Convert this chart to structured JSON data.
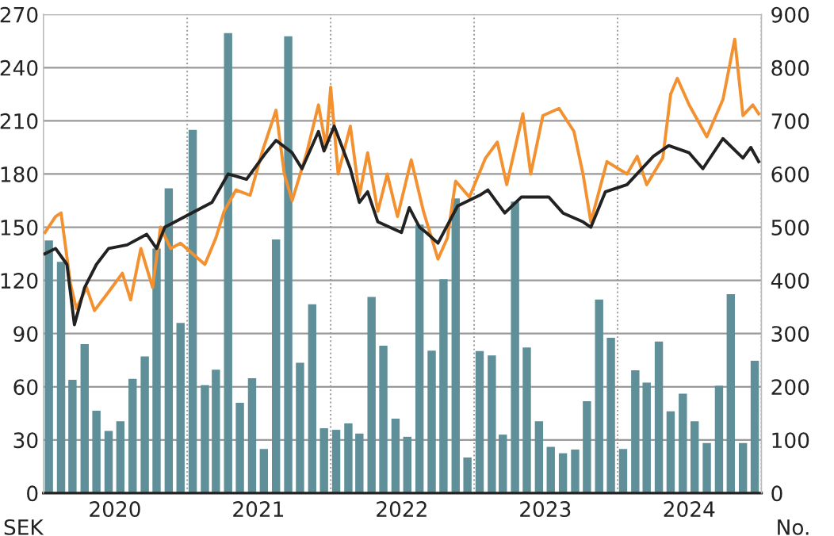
{
  "chart_data": {
    "type": "bar",
    "ylabel": "SEK",
    "y2label": "No.",
    "xlim": [
      "2020-01-01",
      "2025-01-01"
    ],
    "xticks": [
      {
        "value": "2020-07-01",
        "label": "2020"
      },
      {
        "value": "2021-07-01",
        "label": "2021"
      },
      {
        "value": "2022-07-01",
        "label": "2022"
      },
      {
        "value": "2023-07-01",
        "label": "2023"
      },
      {
        "value": "2024-07-01",
        "label": "2024"
      }
    ],
    "ylim": [
      0,
      270
    ],
    "yticks": [
      0,
      30,
      60,
      90,
      120,
      150,
      180,
      210,
      240,
      270
    ],
    "y2lim": [
      0,
      900
    ],
    "y2ticks": [
      0,
      100,
      200,
      300,
      400,
      500,
      600,
      700,
      800,
      900
    ],
    "grid": "y",
    "ref_lines": [
      {
        "axis": "x",
        "value": "2021-01-01",
        "color": "#999999",
        "line_style": "dotted"
      },
      {
        "axis": "x",
        "value": "2022-01-01",
        "color": "#999999",
        "line_style": "dotted"
      },
      {
        "axis": "x",
        "value": "2023-01-01",
        "color": "#999999",
        "line_style": "dotted"
      },
      {
        "axis": "x",
        "value": "2024-01-01",
        "color": "#999999",
        "line_style": "dotted"
      },
      {
        "axis": "x",
        "value": "2025-01-01",
        "color": "#999999",
        "line_style": "dotted"
      }
    ],
    "series": [
      {
        "axis": "y2",
        "color": "#5f8f99",
        "x": [
          "2020-01-15",
          "2020-02-15",
          "2020-03-15",
          "2020-04-15",
          "2020-05-15",
          "2020-06-15",
          "2020-07-15",
          "2020-08-15",
          "2020-09-15",
          "2020-10-15",
          "2020-11-15",
          "2020-12-15",
          "2021-01-15",
          "2021-02-15",
          "2021-03-15",
          "2021-04-15",
          "2021-05-15",
          "2021-06-15",
          "2021-07-15",
          "2021-08-15",
          "2021-09-15",
          "2021-10-15",
          "2021-11-15",
          "2021-12-15",
          "2022-01-15",
          "2022-02-15",
          "2022-03-15",
          "2022-04-15",
          "2022-05-15",
          "2022-06-15",
          "2022-07-15",
          "2022-08-15",
          "2022-09-15",
          "2022-10-15",
          "2022-11-15",
          "2022-12-15",
          "2023-01-15",
          "2023-02-15",
          "2023-03-15",
          "2023-04-15",
          "2023-05-15",
          "2023-06-15",
          "2023-07-15",
          "2023-08-15",
          "2023-09-15",
          "2023-10-15",
          "2023-11-15",
          "2023-12-15",
          "2024-01-15",
          "2024-02-15",
          "2024-03-15",
          "2024-04-15",
          "2024-05-15",
          "2024-06-15",
          "2024-07-15",
          "2024-08-15",
          "2024-09-15",
          "2024-10-15",
          "2024-11-15",
          "2024-12-15"
        ],
        "values": [
          475,
          435,
          213,
          280,
          155,
          117,
          135,
          215,
          257,
          460,
          573,
          320,
          683,
          203,
          232,
          865,
          170,
          216,
          83,
          477,
          859,
          245,
          355,
          122,
          119,
          131,
          112,
          369,
          277,
          140,
          106,
          505,
          268,
          402,
          554,
          67,
          267,
          259,
          110,
          548,
          274,
          135,
          87,
          75,
          82,
          173,
          364,
          292,
          83,
          231,
          208,
          285,
          154,
          187,
          135,
          94,
          202,
          374,
          94,
          249
        ]
      },
      {
        "type": "line",
        "color": "#f39130",
        "x": [
          "2020-01-05",
          "2020-02-01",
          "2020-02-15",
          "2020-03-10",
          "2020-03-25",
          "2020-04-20",
          "2020-05-10",
          "2020-06-10",
          "2020-07-20",
          "2020-08-10",
          "2020-09-05",
          "2020-10-05",
          "2020-10-25",
          "2020-11-20",
          "2020-12-15",
          "2021-02-15",
          "2021-03-15",
          "2021-04-05",
          "2021-05-05",
          "2021-06-10",
          "2021-07-10",
          "2021-08-15",
          "2021-09-05",
          "2021-09-25",
          "2021-11-01",
          "2021-12-01",
          "2021-12-20",
          "2022-01-01",
          "2022-01-20",
          "2022-02-20",
          "2022-03-15",
          "2022-04-05",
          "2022-05-01",
          "2022-05-25",
          "2022-06-20",
          "2022-07-25",
          "2022-08-25",
          "2022-10-01",
          "2022-10-25",
          "2022-11-15",
          "2022-12-20",
          "2023-01-30",
          "2023-03-01",
          "2023-03-25",
          "2023-05-05",
          "2023-05-25",
          "2023-06-25",
          "2023-08-05",
          "2023-09-12",
          "2023-10-05",
          "2023-10-25",
          "2023-12-05",
          "2024-01-25",
          "2024-02-20",
          "2024-03-15",
          "2024-04-25",
          "2024-05-15",
          "2024-06-01",
          "2024-07-01",
          "2024-08-15",
          "2024-09-25",
          "2024-10-25",
          "2024-11-15",
          "2024-12-10",
          "2024-12-25"
        ],
        "values": [
          147,
          156,
          158,
          118,
          104,
          116,
          103,
          112,
          124,
          109,
          138,
          116,
          150,
          138,
          141,
          129,
          144,
          159,
          171,
          168,
          192,
          216,
          180,
          165,
          192,
          219,
          195,
          229,
          180,
          207,
          168,
          192,
          159,
          180,
          156,
          188,
          159,
          132,
          144,
          176,
          167,
          189,
          198,
          174,
          214,
          180,
          213,
          217,
          204,
          180,
          153,
          187,
          180,
          190,
          174,
          189,
          225,
          234,
          219,
          201,
          222,
          256,
          213,
          219,
          214
        ]
      },
      {
        "type": "line",
        "color": "#222222",
        "x": [
          "2020-01-05",
          "2020-02-01",
          "2020-03-01",
          "2020-03-20",
          "2020-04-15",
          "2020-05-15",
          "2020-06-15",
          "2020-08-01",
          "2020-09-20",
          "2020-10-15",
          "2020-11-05",
          "2020-12-01",
          "2021-03-05",
          "2021-04-15",
          "2021-06-01",
          "2021-07-20",
          "2021-08-15",
          "2021-09-25",
          "2021-10-20",
          "2021-12-01",
          "2021-12-15",
          "2022-01-10",
          "2022-02-20",
          "2022-03-15",
          "2022-04-05",
          "2022-05-01",
          "2022-06-30",
          "2022-07-20",
          "2022-08-15",
          "2022-09-01",
          "2022-10-01",
          "2022-11-20",
          "2023-01-15",
          "2023-02-05",
          "2023-03-20",
          "2023-05-01",
          "2023-07-10",
          "2023-08-15",
          "2023-10-05",
          "2023-10-25",
          "2023-12-01",
          "2024-01-25",
          "2024-04-01",
          "2024-05-10",
          "2024-07-01",
          "2024-08-05",
          "2024-09-25",
          "2024-11-15",
          "2024-12-05",
          "2024-12-25"
        ],
        "values": [
          135,
          138,
          129,
          95,
          116,
          129,
          138,
          140,
          146,
          138,
          150,
          153,
          164,
          180,
          177,
          192,
          199,
          192,
          183,
          204,
          193,
          207,
          183,
          164,
          170,
          153,
          147,
          161,
          150,
          147,
          141,
          162,
          168,
          171,
          158,
          167,
          167,
          158,
          153,
          150,
          170,
          174,
          190,
          196,
          192,
          183,
          200,
          189,
          195,
          187
        ]
      }
    ]
  }
}
